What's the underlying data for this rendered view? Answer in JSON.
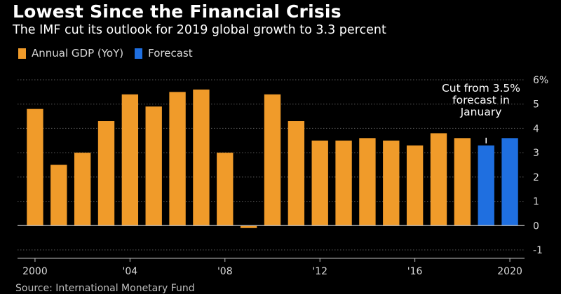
{
  "header": {
    "title": "Lowest Since the Financial Crisis",
    "subtitle": "The IMF cut its outlook for 2019 global growth to 3.3 percent"
  },
  "legend": {
    "items": [
      {
        "label": "Annual GDP (YoY)",
        "color": "#f09b2a"
      },
      {
        "label": "Forecast",
        "color": "#1f6fe0"
      }
    ]
  },
  "annotation": {
    "lines": [
      "Cut from 3.5%",
      "forecast in",
      "January"
    ]
  },
  "source": {
    "text": "Source: International Monetary Fund"
  },
  "chart_data": {
    "type": "bar",
    "categories": [
      "2000",
      "2001",
      "2002",
      "2003",
      "2004",
      "2005",
      "2006",
      "2007",
      "2008",
      "2009",
      "2010",
      "2011",
      "2012",
      "2013",
      "2014",
      "2015",
      "2016",
      "2017",
      "2018",
      "2019",
      "2020"
    ],
    "series": [
      {
        "name": "Annual GDP (YoY)",
        "color": "#f09b2a",
        "values": [
          4.8,
          2.5,
          3.0,
          4.3,
          5.4,
          4.9,
          5.5,
          5.6,
          3.0,
          -0.1,
          5.4,
          4.3,
          3.5,
          3.5,
          3.6,
          3.5,
          3.3,
          3.8,
          3.6,
          null,
          null
        ]
      },
      {
        "name": "Forecast",
        "color": "#1f6fe0",
        "values": [
          null,
          null,
          null,
          null,
          null,
          null,
          null,
          null,
          null,
          null,
          null,
          null,
          null,
          null,
          null,
          null,
          null,
          null,
          null,
          3.3,
          3.6
        ]
      }
    ],
    "x_tick_labels": [
      {
        "category": "2000",
        "label": "2000"
      },
      {
        "category": "2004",
        "label": "'04"
      },
      {
        "category": "2008",
        "label": "'08"
      },
      {
        "category": "2012",
        "label": "'12"
      },
      {
        "category": "2016",
        "label": "'16"
      },
      {
        "category": "2020",
        "label": "2020"
      }
    ],
    "y_ticks": [
      -1,
      0,
      1,
      2,
      3,
      4,
      5,
      6
    ],
    "y_tick_labels": [
      "-1",
      "0",
      "1",
      "2",
      "3",
      "4",
      "5",
      "6%"
    ],
    "ylim": [
      -1,
      6
    ],
    "grid": true,
    "gridline_color": "#5a5a5a",
    "axis_color": "#bfbfbf",
    "legend_position": "top-left",
    "annotation_target": "2019",
    "annotation_marker_value": 3.5
  }
}
